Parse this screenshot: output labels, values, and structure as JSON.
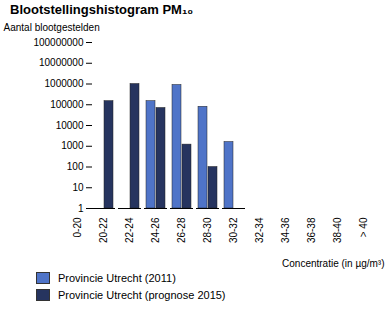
{
  "chart_data": {
    "type": "bar",
    "title": "Blootstellingshistogram PM₁₀",
    "y_label": "Aantal blootgestelden",
    "x_label": "Concentratie (in µg/m³)",
    "categories": [
      "0-20",
      "20-22",
      "22-24",
      "24-26",
      "26-28",
      "28-30",
      "30-32",
      "32-34",
      "34-36",
      "36-38",
      "38-40",
      "> 40"
    ],
    "series": [
      {
        "name": "Provincie Utrecht (2011)",
        "color": "#4f74c8",
        "values": [
          null,
          null,
          null,
          150000,
          900000,
          80000,
          1600,
          null,
          null,
          null,
          null,
          null
        ]
      },
      {
        "name": "Provincie Utrecht (prognose 2015)",
        "color": "#26345f",
        "values": [
          null,
          150000,
          1000000,
          70000,
          1200,
          100,
          null,
          null,
          null,
          null,
          null,
          null
        ]
      }
    ],
    "log": "y",
    "ylim": [
      1,
      100000000
    ],
    "yticks": [
      1,
      10,
      100,
      1000,
      10000,
      100000,
      1000000,
      10000000,
      100000000
    ],
    "legend": "bottom"
  }
}
